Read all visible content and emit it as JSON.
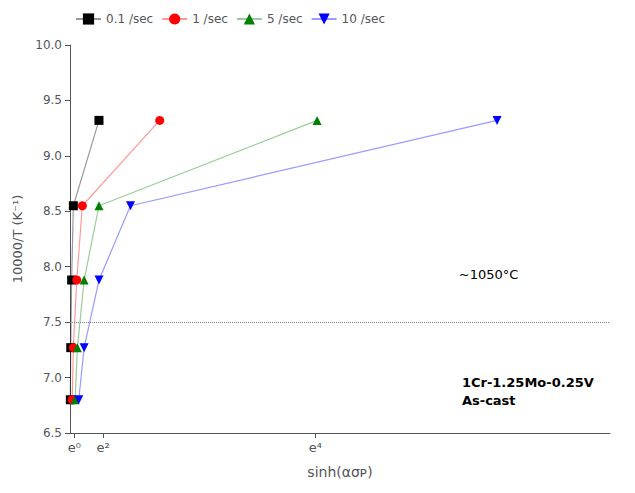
{
  "chart_data": {
    "type": "line",
    "xlabel": "sinh(ασᴘ)",
    "ylabel": "10000/T (K⁻¹)",
    "xlim": [
      0.05413411329464508,
      120.11593007291732
    ],
    "xticks": [
      {
        "value": 1,
        "label": "e⁰"
      },
      {
        "value": 7.38905609893065,
        "label": "e²"
      },
      {
        "value": 54.598150033144236,
        "label": "e⁴"
      }
    ],
    "ylim": [
      6.5,
      10.0
    ],
    "yticks": [
      6.5,
      {
        "value": 7.0,
        "label": "7.0"
      },
      7.5,
      {
        "value": 8.0,
        "label": "8.0"
      },
      8.5,
      {
        "value": 9.0,
        "label": "9.0"
      },
      9.5,
      {
        "value": 10.0,
        "label": "10.0"
      }
    ],
    "grid": false,
    "legend": "upper left",
    "series": [
      {
        "name": "0.1 /sec",
        "color": "black",
        "marker": "square",
        "x": [
          0.13,
          0.22,
          0.42,
          0.8,
          6.5
        ],
        "values": [
          6.8,
          7.27,
          7.88,
          8.55,
          9.32
        ]
      },
      {
        "name": "1 /sec",
        "color": "red",
        "marker": "circle",
        "x": [
          0.55,
          0.8,
          1.55,
          2.8,
          20.0
        ],
        "values": [
          6.8,
          7.27,
          7.88,
          8.55,
          9.32
        ]
      },
      {
        "name": "5 /sec",
        "color": "green",
        "marker": "triangle-up",
        "x": [
          1.2,
          1.7,
          3.2,
          6.5,
          55.0
        ],
        "values": [
          6.8,
          7.27,
          7.88,
          8.55,
          9.32
        ]
      },
      {
        "name": "10 /sec",
        "color": "blue",
        "marker": "triangle-down",
        "x": [
          2.0,
          3.2,
          6.5,
          13.5,
          95.0
        ],
        "values": [
          6.8,
          7.27,
          7.88,
          8.55,
          9.32
        ]
      }
    ],
    "reference_line": {
      "y": 7.5,
      "line_style": "dotted"
    },
    "annotations": [
      {
        "text": "~1050°C"
      },
      {
        "text": "1Cr-1.25Mo-0.25V\nAs-cast"
      }
    ]
  }
}
